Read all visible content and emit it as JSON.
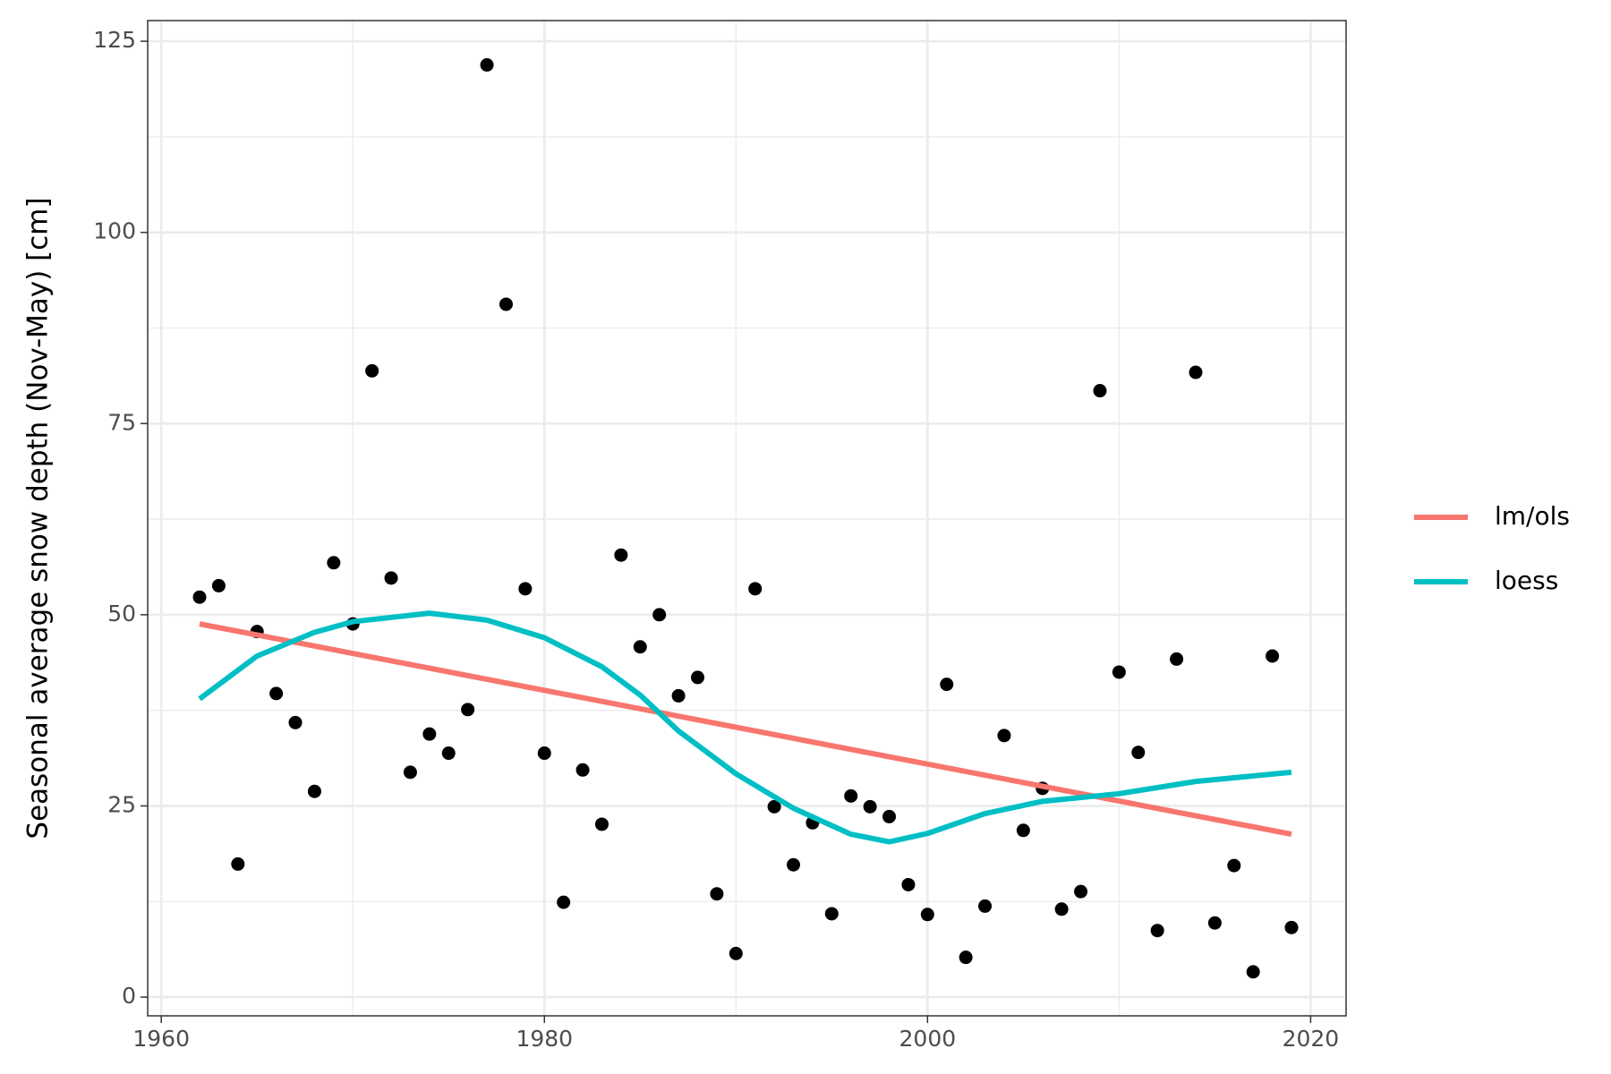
{
  "chart_data": {
    "type": "scatter",
    "ylabel": "Seasonal average snow depth (Nov-May) [cm]",
    "xlim": [
      1959.29,
      2021.85
    ],
    "ylim": [
      -2.45,
      127.7
    ],
    "xticks": [
      1960,
      1980,
      2000,
      2020
    ],
    "yticks": [
      0,
      25,
      50,
      75,
      100,
      125
    ],
    "minor_xticks": [
      1970,
      1990,
      2010
    ],
    "minor_yticks": [
      12.5,
      37.5,
      62.5,
      87.5,
      112.5
    ],
    "grid": true,
    "legend": "right",
    "series": [
      {
        "type": "scatter",
        "color": "#000000",
        "x": [
          1962,
          1963,
          1964,
          1965,
          1966,
          1967,
          1968,
          1969,
          1970,
          1971,
          1972,
          1973,
          1974,
          1975,
          1976,
          1977,
          1978,
          1979,
          1980,
          1981,
          1982,
          1983,
          1984,
          1985,
          1986,
          1987,
          1988,
          1989,
          1990,
          1991,
          1992,
          1993,
          1994,
          1995,
          1996,
          1997,
          1998,
          1999,
          2000,
          2001,
          2002,
          2003,
          2004,
          2005,
          2006,
          2007,
          2008,
          2009,
          2010,
          2011,
          2012,
          2013,
          2014,
          2015,
          2016,
          2017,
          2018,
          2019
        ],
        "values": [
          52.3,
          53.8,
          17.4,
          47.8,
          39.7,
          35.9,
          26.9,
          56.8,
          48.8,
          81.9,
          54.8,
          29.4,
          34.4,
          31.9,
          37.6,
          121.9,
          90.6,
          53.4,
          31.9,
          12.4,
          29.7,
          22.6,
          57.8,
          45.8,
          50.0,
          39.4,
          41.8,
          13.5,
          5.7,
          53.4,
          24.9,
          17.3,
          22.8,
          10.9,
          26.3,
          24.9,
          23.6,
          14.7,
          10.8,
          40.9,
          5.2,
          11.9,
          34.2,
          21.8,
          27.3,
          11.5,
          13.8,
          79.3,
          42.5,
          32.0,
          8.7,
          44.2,
          81.7,
          9.7,
          17.2,
          3.3,
          44.6,
          9.1
        ]
      },
      {
        "type": "line",
        "name": "lm/ols",
        "color": "#f8766d",
        "x": [
          1962,
          2019
        ],
        "values": [
          48.8,
          21.3
        ]
      },
      {
        "type": "line",
        "name": "loess",
        "color": "#00bfc4",
        "x": [
          1962,
          1965,
          1968,
          1970,
          1974,
          1977,
          1980,
          1983,
          1985,
          1987,
          1990,
          1993,
          1996,
          1998,
          2000,
          2003,
          2006,
          2010,
          2014,
          2019
        ],
        "values": [
          39.0,
          44.6,
          47.7,
          49.1,
          50.2,
          49.3,
          47.0,
          43.2,
          39.5,
          34.8,
          29.2,
          24.7,
          21.3,
          20.3,
          21.4,
          24.0,
          25.6,
          26.6,
          28.2,
          29.4
        ]
      }
    ]
  }
}
